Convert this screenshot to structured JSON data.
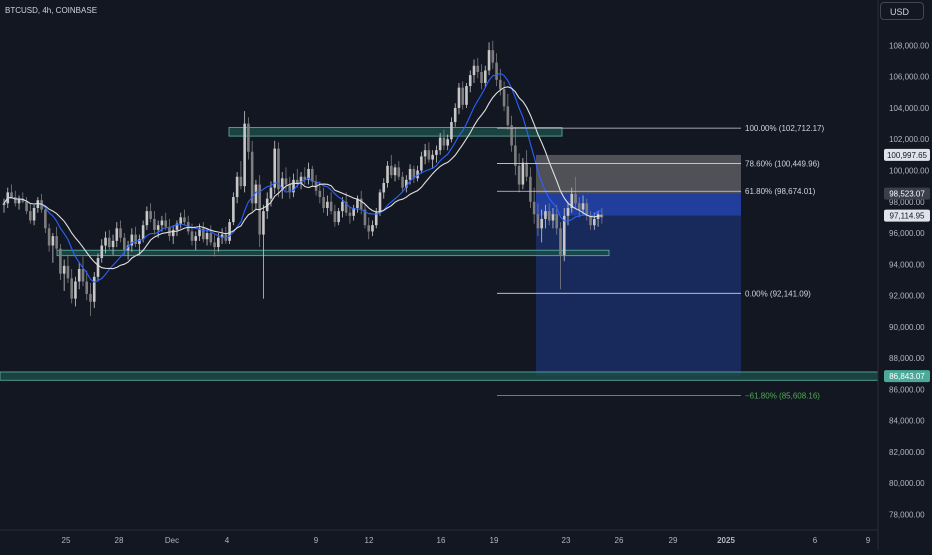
{
  "header": {
    "symbol_label": "BTCUSD, 4h, COINBASE"
  },
  "scale": {
    "currency_label": "USD"
  },
  "colors": {
    "background": "#131722",
    "axis_text": "#b2b5be",
    "bull_candle": "#c7c7c7",
    "bear_candle": "#7e7e7e",
    "ma_fast": "#2962ff",
    "ma_slow": "#e0e0e0",
    "zone_fill": "#1d4e4a",
    "zone_border": "#5fb3a8",
    "stop_zone": "#9a9a9a",
    "target_zone": "#1e3a8a",
    "fib_line": "#d1d4dc",
    "fib_ext_line": "#4caf50"
  },
  "chart_data": {
    "type": "candlestick",
    "title": "BTCUSD, 4h, COINBASE",
    "ylabel": "USD",
    "ylim": [
      77000,
      109500
    ],
    "x_tick_labels": [
      "25",
      "28",
      "Dec",
      "4",
      "9",
      "12",
      "16",
      "19",
      "23",
      "26",
      "29",
      "2025",
      "6",
      "9"
    ],
    "y_tick_labels": [
      "108,000.00",
      "106,000.00",
      "104,000.00",
      "102,000.00",
      "100,000.00",
      "98,000.00",
      "96,000.00",
      "94,000.00",
      "92,000.00",
      "90,000.00",
      "88,000.00",
      "86,000.00",
      "84,000.00",
      "82,000.00",
      "80,000.00",
      "78,000.00"
    ],
    "y_tick_values": [
      108000,
      106000,
      104000,
      102000,
      100000,
      98000,
      96000,
      94000,
      92000,
      90000,
      88000,
      86000,
      84000,
      82000,
      80000,
      78000
    ],
    "price_tags": [
      {
        "label": "100,997.65",
        "value": 100997.65,
        "style": "light"
      },
      {
        "label": "98,523.07",
        "value": 98523.07,
        "style": "dark"
      },
      {
        "label": "97,114.95",
        "value": 97114.95,
        "style": "light"
      },
      {
        "label": "86,843.07",
        "value": 86843.07,
        "style": "teal"
      }
    ],
    "fib_levels": [
      {
        "label": "100.00% (102,712.17)",
        "value": 102712.17
      },
      {
        "label": "78.60% (100,449.96)",
        "value": 100449.96
      },
      {
        "label": "61.80% (98,674.01)",
        "value": 98674.01
      },
      {
        "label": "0.00% (92,141.09)",
        "value": 92141.09
      }
    ],
    "fib_extension": {
      "label": "−61.80% (85,608.16)",
      "value": 85608.16
    },
    "support_resistance_zones": [
      {
        "low": 102200,
        "high": 102750
      },
      {
        "low": 94550,
        "high": 94900
      },
      {
        "low": 86580,
        "high": 87110
      }
    ],
    "position": {
      "entry": 98523.07,
      "stop": 100997.65,
      "target": 86843.07
    },
    "candles": [
      [
        97800,
        98200,
        97300,
        97900
      ],
      [
        97900,
        98900,
        97600,
        98600
      ],
      [
        98600,
        99100,
        98200,
        98300
      ],
      [
        98300,
        98700,
        97700,
        97900
      ],
      [
        97900,
        98400,
        97500,
        98200
      ],
      [
        98200,
        98600,
        97900,
        98000
      ],
      [
        98000,
        98300,
        97200,
        97400
      ],
      [
        97400,
        97900,
        96600,
        96800
      ],
      [
        96800,
        97800,
        96500,
        97600
      ],
      [
        97600,
        98300,
        97300,
        98100
      ],
      [
        98100,
        98500,
        97300,
        97500
      ],
      [
        97500,
        97700,
        96000,
        96300
      ],
      [
        96300,
        96600,
        94800,
        95200
      ],
      [
        95200,
        96000,
        94100,
        95800
      ],
      [
        95800,
        96400,
        94900,
        95000
      ],
      [
        95000,
        95300,
        93000,
        93400
      ],
      [
        93400,
        94300,
        92300,
        93900
      ],
      [
        93900,
        94600,
        92800,
        93100
      ],
      [
        93100,
        93700,
        91500,
        91800
      ],
      [
        91800,
        93200,
        91300,
        92900
      ],
      [
        92900,
        94100,
        92400,
        93700
      ],
      [
        93700,
        94500,
        92600,
        92900
      ],
      [
        92900,
        93600,
        91700,
        92100
      ],
      [
        92100,
        92800,
        90700,
        91600
      ],
      [
        91600,
        93500,
        91200,
        93200
      ],
      [
        93200,
        94700,
        92900,
        94400
      ],
      [
        94400,
        95600,
        94100,
        95200
      ],
      [
        95200,
        96100,
        94700,
        95700
      ],
      [
        95700,
        96200,
        94900,
        95100
      ],
      [
        95100,
        95900,
        94600,
        95500
      ],
      [
        95500,
        96700,
        95100,
        96300
      ],
      [
        96300,
        96800,
        95400,
        95700
      ],
      [
        95700,
        96000,
        94600,
        94900
      ],
      [
        94900,
        95500,
        94300,
        95200
      ],
      [
        95200,
        96300,
        94800,
        95900
      ],
      [
        95900,
        96400,
        95100,
        95300
      ],
      [
        95300,
        95900,
        94600,
        95600
      ],
      [
        95600,
        96800,
        95400,
        96500
      ],
      [
        96500,
        97700,
        96200,
        97400
      ],
      [
        97400,
        97900,
        96700,
        96900
      ],
      [
        96900,
        97400,
        95900,
        96200
      ],
      [
        96200,
        96800,
        95700,
        96500
      ],
      [
        96500,
        97100,
        96100,
        96800
      ],
      [
        96800,
        97300,
        96200,
        96400
      ],
      [
        96400,
        96900,
        95500,
        95800
      ],
      [
        95800,
        96500,
        95300,
        96200
      ],
      [
        96200,
        96800,
        95800,
        96600
      ],
      [
        96600,
        97300,
        96300,
        97000
      ],
      [
        97000,
        97500,
        96500,
        96700
      ],
      [
        96700,
        97100,
        95900,
        96100
      ],
      [
        96100,
        96600,
        95200,
        95500
      ],
      [
        95500,
        96100,
        94900,
        95800
      ],
      [
        95800,
        96600,
        95500,
        96300
      ],
      [
        96300,
        96700,
        95400,
        95600
      ],
      [
        95600,
        96300,
        95200,
        96000
      ],
      [
        96000,
        96500,
        95200,
        95400
      ],
      [
        95400,
        95900,
        94500,
        95100
      ],
      [
        95100,
        96000,
        94800,
        95700
      ],
      [
        95700,
        96300,
        95300,
        95900
      ],
      [
        95900,
        96400,
        95300,
        95500
      ],
      [
        95500,
        96900,
        95300,
        96700
      ],
      [
        96700,
        98600,
        96500,
        98300
      ],
      [
        98300,
        99900,
        97900,
        99600
      ],
      [
        99600,
        100600,
        98800,
        99000
      ],
      [
        99000,
        103800,
        98600,
        103000
      ],
      [
        103000,
        103400,
        100700,
        101200
      ],
      [
        101200,
        101900,
        97400,
        97900
      ],
      [
        97900,
        99400,
        97500,
        99100
      ],
      [
        99100,
        99700,
        95100,
        95900
      ],
      [
        95900,
        97800,
        91800,
        97400
      ],
      [
        97400,
        98600,
        96900,
        98200
      ],
      [
        98200,
        99300,
        97700,
        98900
      ],
      [
        98900,
        101900,
        98500,
        101400
      ],
      [
        101400,
        101800,
        98300,
        98800
      ],
      [
        98800,
        99900,
        98200,
        99500
      ],
      [
        99500,
        100200,
        98700,
        99100
      ],
      [
        99100,
        99600,
        98200,
        98600
      ],
      [
        98600,
        99800,
        98300,
        99400
      ],
      [
        99400,
        100100,
        98900,
        99200
      ],
      [
        99200,
        99900,
        98800,
        99600
      ],
      [
        99600,
        100200,
        99100,
        99400
      ],
      [
        99400,
        100500,
        99100,
        100100
      ],
      [
        100100,
        100300,
        99000,
        99300
      ],
      [
        99300,
        99700,
        98400,
        98700
      ],
      [
        98700,
        99300,
        97900,
        98300
      ],
      [
        98300,
        98900,
        97300,
        97600
      ],
      [
        97600,
        98400,
        97100,
        98000
      ],
      [
        98000,
        98600,
        97200,
        97400
      ],
      [
        97400,
        97800,
        96400,
        96700
      ],
      [
        96700,
        97600,
        96500,
        97400
      ],
      [
        97400,
        98300,
        97000,
        98000
      ],
      [
        98000,
        98600,
        97100,
        97300
      ],
      [
        97300,
        97700,
        96600,
        97100
      ],
      [
        97100,
        97800,
        96800,
        97600
      ],
      [
        97600,
        98400,
        97300,
        98200
      ],
      [
        98200,
        98700,
        97200,
        97500
      ],
      [
        97500,
        97800,
        96300,
        96500
      ],
      [
        96500,
        97000,
        95600,
        96100
      ],
      [
        96100,
        96800,
        95800,
        96500
      ],
      [
        96500,
        97600,
        96300,
        97300
      ],
      [
        97300,
        98800,
        97100,
        98600
      ],
      [
        98600,
        99500,
        98200,
        99200
      ],
      [
        99200,
        100600,
        98900,
        100300
      ],
      [
        100300,
        101000,
        99500,
        99700
      ],
      [
        99700,
        100400,
        99300,
        100200
      ],
      [
        100200,
        100600,
        99400,
        99600
      ],
      [
        99600,
        99900,
        98600,
        98900
      ],
      [
        98900,
        99700,
        98600,
        99400
      ],
      [
        99400,
        100400,
        99100,
        100100
      ],
      [
        100100,
        100300,
        99200,
        99500
      ],
      [
        99500,
        100300,
        99300,
        100000
      ],
      [
        100000,
        101200,
        99800,
        100900
      ],
      [
        100900,
        101700,
        100400,
        101300
      ],
      [
        101300,
        101800,
        100500,
        100700
      ],
      [
        100700,
        101300,
        100100,
        101000
      ],
      [
        101000,
        101600,
        100500,
        101300
      ],
      [
        101300,
        102400,
        101000,
        102100
      ],
      [
        102100,
        102600,
        101300,
        101600
      ],
      [
        101600,
        102300,
        101300,
        102000
      ],
      [
        102000,
        103400,
        101800,
        103100
      ],
      [
        103100,
        104300,
        102800,
        104000
      ],
      [
        104000,
        105600,
        103600,
        105300
      ],
      [
        105300,
        105700,
        103900,
        104200
      ],
      [
        104200,
        105600,
        104000,
        105400
      ],
      [
        105400,
        106400,
        105000,
        106100
      ],
      [
        106100,
        107100,
        105600,
        106700
      ],
      [
        106700,
        107200,
        105900,
        106300
      ],
      [
        106300,
        106800,
        105200,
        105600
      ],
      [
        105600,
        106700,
        105300,
        106400
      ],
      [
        106400,
        108200,
        106100,
        107700
      ],
      [
        107700,
        108300,
        106500,
        106900
      ],
      [
        106900,
        107500,
        105400,
        105800
      ],
      [
        105800,
        106500,
        104800,
        105200
      ],
      [
        105200,
        105700,
        103800,
        104100
      ],
      [
        104100,
        104900,
        102600,
        102900
      ],
      [
        102900,
        103500,
        101200,
        101600
      ],
      [
        101600,
        102800,
        99700,
        100300
      ],
      [
        100300,
        101100,
        98600,
        99100
      ],
      [
        99100,
        100800,
        98800,
        100500
      ],
      [
        100500,
        101300,
        99300,
        99600
      ],
      [
        99600,
        100200,
        97600,
        98000
      ],
      [
        98000,
        98900,
        96600,
        97200
      ],
      [
        97200,
        97900,
        95800,
        96300
      ],
      [
        96300,
        97500,
        95400,
        96900
      ],
      [
        96900,
        97800,
        96300,
        97400
      ],
      [
        97400,
        97900,
        96500,
        96800
      ],
      [
        96800,
        97600,
        96300,
        97200
      ],
      [
        97200,
        97800,
        95900,
        96300
      ],
      [
        96300,
        96700,
        92400,
        94600
      ],
      [
        94600,
        97600,
        94200,
        97100
      ],
      [
        97100,
        98000,
        96500,
        97600
      ],
      [
        97600,
        98900,
        97300,
        98500
      ],
      [
        98500,
        99600,
        97600,
        97900
      ],
      [
        97900,
        98300,
        97000,
        97500
      ],
      [
        97500,
        98400,
        97200,
        97900
      ],
      [
        97900,
        98200,
        96800,
        97100
      ],
      [
        97100,
        97400,
        96200,
        96500
      ],
      [
        96500,
        97300,
        96200,
        96900
      ],
      [
        96900,
        97400,
        96400,
        97200
      ],
      [
        97200,
        97600,
        96600,
        97000
      ]
    ]
  }
}
